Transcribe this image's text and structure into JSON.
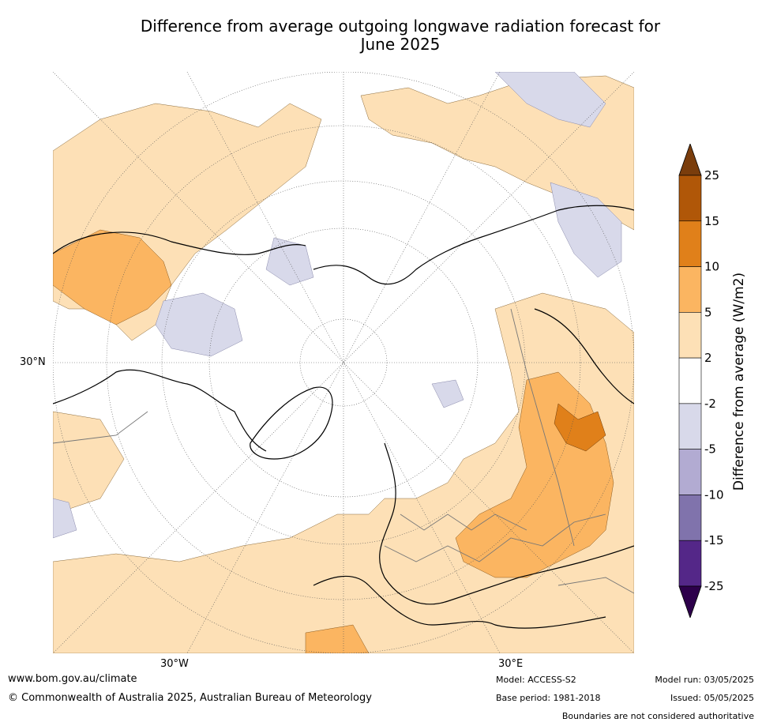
{
  "title_line1": "Difference from average outgoing longwave radiation forecast for",
  "title_line2": "June 2025",
  "map": {
    "projection": "north-polar-stereographic",
    "lat_label": "30°N",
    "lon_labels": [
      "30°W",
      "30°E"
    ]
  },
  "colorbar": {
    "label": "Difference from average (W/m2)",
    "ticks": [
      "25",
      "15",
      "10",
      "5",
      "2",
      "-2",
      "-5",
      "-10",
      "-15",
      "-25"
    ],
    "colors": [
      "#7a3d0c",
      "#b05708",
      "#e0801a",
      "#fbb561",
      "#fde0b6",
      "#ffffff",
      "#d8d9ea",
      "#b2abd2",
      "#8073ac",
      "#542788",
      "#2d004b"
    ]
  },
  "footer": {
    "website": "www.bom.gov.au/climate",
    "copyright": "© Commonwealth of Australia 2025, Australian Bureau of Meteorology",
    "model": "Model: ACCESS-S2",
    "base_period": "Base period: 1981-2018",
    "model_run": "Model run: 03/05/2025",
    "issued": "Issued: 05/05/2025",
    "disclaimer": "Boundaries are not considered authoritative"
  }
}
